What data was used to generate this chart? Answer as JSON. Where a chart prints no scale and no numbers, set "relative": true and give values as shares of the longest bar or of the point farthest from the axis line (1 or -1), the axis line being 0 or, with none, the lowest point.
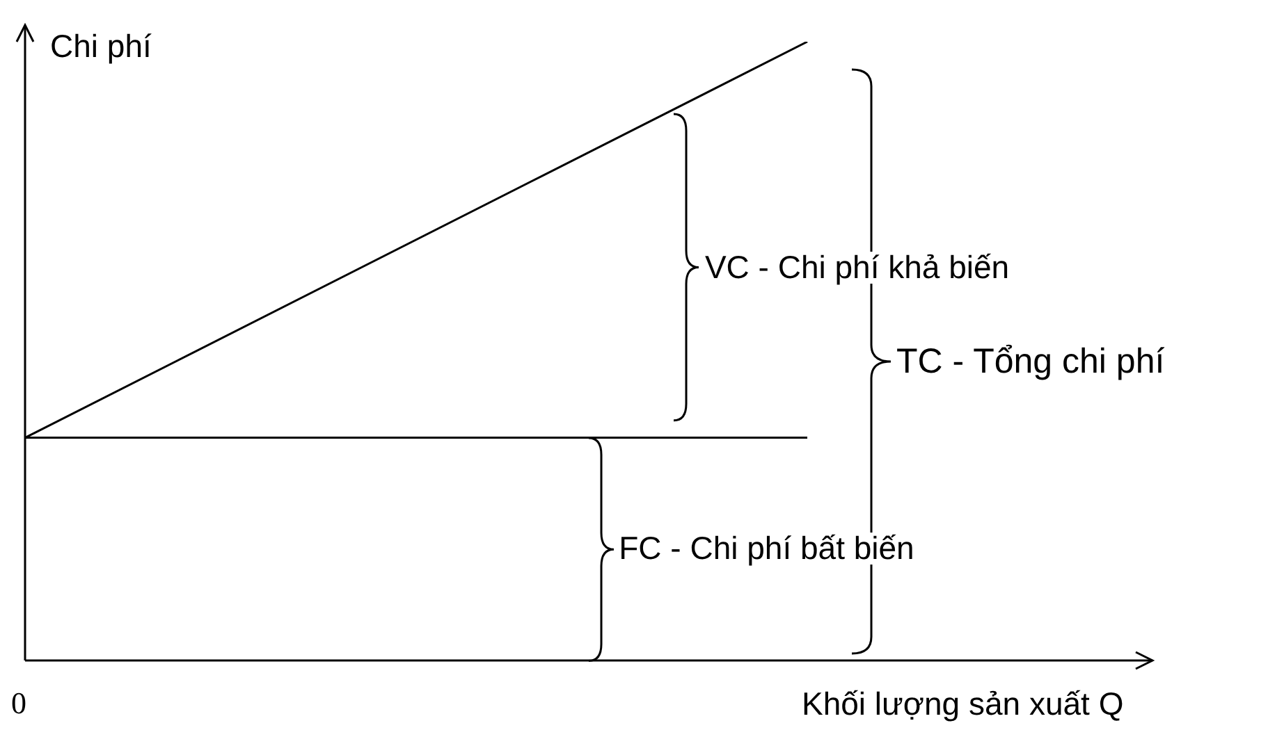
{
  "chart_data": {
    "type": "line",
    "relative": true,
    "categories": [
      null,
      null
    ],
    "series": [
      {
        "color": "#000000",
        "values": [
          0.36,
          1
        ]
      },
      {
        "color": "#000000",
        "values": [
          0.36,
          0.36
        ]
      }
    ],
    "ylabel": "Chi phí",
    "xlabel": "Khối lượng sản xuất Q",
    "annotations": [
      "VC - Chi phí khả biến",
      "FC - Chi phí bất biến",
      "TC - Tổng chi phí",
      "0"
    ],
    "legend": false,
    "marker": "none",
    "line_style": "solid"
  }
}
